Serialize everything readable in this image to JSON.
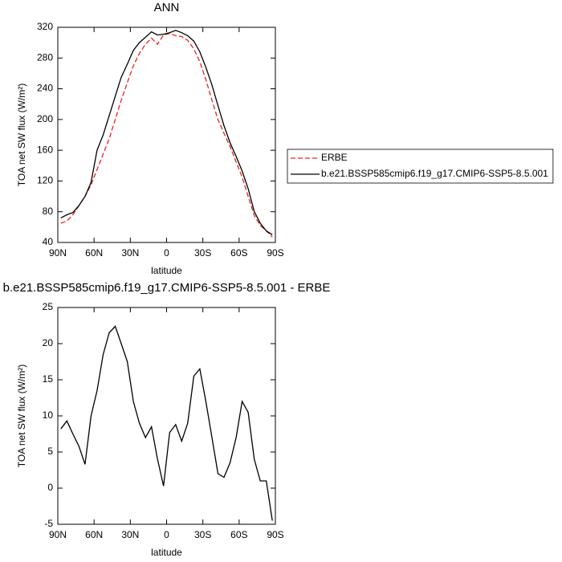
{
  "chart_data": [
    {
      "type": "line",
      "title": "ANN",
      "xlabel": "latitude",
      "ylabel": "TOA net SW flux (W/m²)",
      "x": [
        87.5,
        82.5,
        77.5,
        72.5,
        67.5,
        62.5,
        57.5,
        52.5,
        47.5,
        42.5,
        37.5,
        32.5,
        27.5,
        22.5,
        17.5,
        12.5,
        7.5,
        2.5,
        -2.5,
        -7.5,
        -12.5,
        -17.5,
        -22.5,
        -27.5,
        -32.5,
        -37.5,
        -42.5,
        -47.5,
        -52.5,
        -57.5,
        -62.5,
        -67.5,
        -72.5,
        -77.5,
        -82.5,
        -87.5
      ],
      "series": [
        {
          "name": "ERBE",
          "color": "#e8231e",
          "dashed": true,
          "values": [
            65,
            68,
            76,
            88,
            100,
            115,
            135,
            155,
            175,
            200,
            225,
            248,
            270,
            286,
            298,
            306,
            298,
            310,
            312,
            309,
            308,
            303,
            292,
            275,
            252,
            225,
            200,
            182,
            165,
            145,
            125,
            100,
            75,
            62,
            55,
            47
          ]
        },
        {
          "name": "b.e21.BSSP585cmip6.f19_g17.CMIP6-SSP5-8.5.001",
          "color": "#000000",
          "dashed": false,
          "values": [
            72,
            76,
            79,
            88,
            100,
            118,
            160,
            180,
            205,
            230,
            255,
            272,
            290,
            300,
            307,
            314,
            310,
            311,
            313,
            316,
            313,
            309,
            302,
            288,
            268,
            245,
            218,
            192,
            170,
            152,
            133,
            110,
            80,
            65,
            55,
            50
          ]
        }
      ],
      "xlim": [
        90,
        -90
      ],
      "xticks": [
        {
          "value": 90,
          "label": "90N"
        },
        {
          "value": 60,
          "label": "60N"
        },
        {
          "value": 30,
          "label": "30N"
        },
        0,
        {
          "value": -30,
          "label": "30S"
        },
        {
          "value": -60,
          "label": "60S"
        },
        {
          "value": -90,
          "label": "90S"
        }
      ],
      "ylim": [
        40,
        320
      ],
      "yticks": [
        40,
        80,
        120,
        160,
        200,
        240,
        280,
        320
      ],
      "legend": "right"
    },
    {
      "type": "line",
      "title": "b.e21.BSSP585cmip6.f19_g17.CMIP6-SSP5-8.5.001 - ERBE",
      "xlabel": "latitude",
      "ylabel": "TOA net SW flux (W/m²)",
      "x": [
        87.5,
        82.5,
        77.5,
        72.5,
        67.5,
        62.5,
        57.5,
        52.5,
        47.5,
        42.5,
        37.5,
        32.5,
        27.5,
        22.5,
        17.5,
        12.5,
        7.5,
        2.5,
        -2.5,
        -7.5,
        -12.5,
        -17.5,
        -22.5,
        -27.5,
        -32.5,
        -37.5,
        -42.5,
        -47.5,
        -52.5,
        -57.5,
        -62.5,
        -67.5,
        -72.5,
        -77.5,
        -82.5,
        -87.5
      ],
      "values": [
        8.2,
        9.3,
        7.5,
        5.8,
        3.3,
        10,
        13.5,
        18.5,
        21.5,
        22.4,
        20,
        17.5,
        12,
        9,
        7,
        8.5,
        4,
        0.3,
        7.7,
        8.8,
        6.5,
        9,
        15.5,
        16.5,
        12,
        7,
        2,
        1.5,
        3.5,
        7,
        12,
        10.5,
        4,
        1,
        1,
        -4.5
      ],
      "color": "#000000",
      "xlim": [
        90,
        -90
      ],
      "xticks": [
        {
          "value": 90,
          "label": "90N"
        },
        {
          "value": 60,
          "label": "60N"
        },
        {
          "value": 30,
          "label": "30N"
        },
        0,
        {
          "value": -30,
          "label": "30S"
        },
        {
          "value": -60,
          "label": "60S"
        },
        {
          "value": -90,
          "label": "90S"
        }
      ],
      "ylim": [
        -5,
        25
      ],
      "yticks": [
        -5,
        0,
        5,
        10,
        15,
        20,
        25
      ]
    }
  ]
}
